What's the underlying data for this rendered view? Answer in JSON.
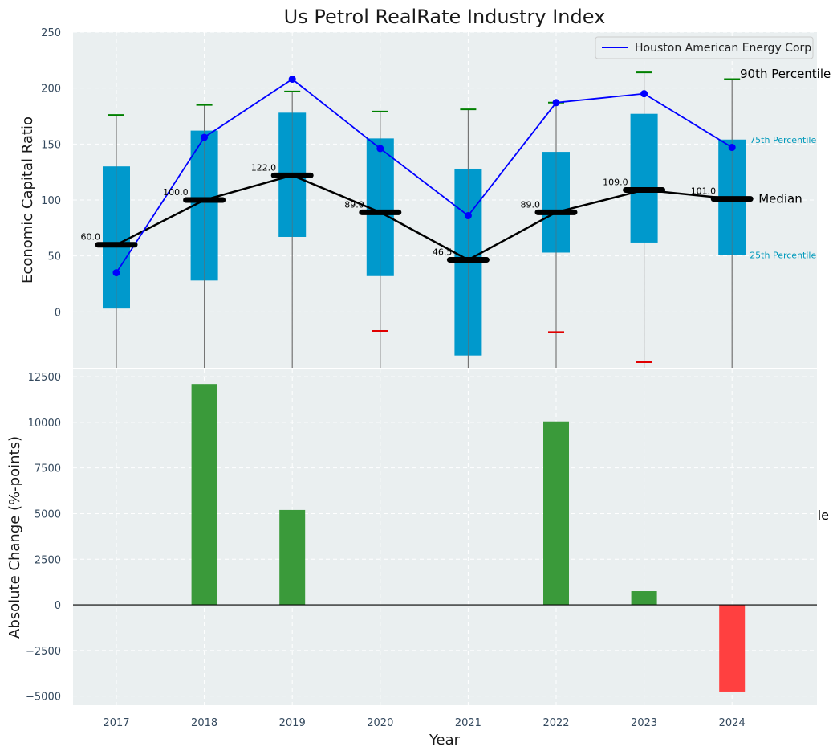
{
  "title": "Us Petrol RealRate Industry Index",
  "colors": {
    "panel_bg": "#eaeff0",
    "grid": "#ffffff",
    "box": "#0099cc",
    "median": "#000000",
    "company": "#0000ff",
    "whisker_top": "#008000",
    "whisker_bottom": "#e00000",
    "bar_pos": "#3a9a3a",
    "bar_neg": "#ff4040",
    "tick_text": "#34495e",
    "pct_label": "#0099bb"
  },
  "chart_data": [
    {
      "type": "box",
      "title": "Us Petrol RealRate Industry Index",
      "ylabel": "Economic Capital Ratio",
      "xlabel": "",
      "ylim": [
        -50,
        250
      ],
      "yticks": [
        0,
        50,
        100,
        150,
        200,
        250
      ],
      "categories": [
        "2017",
        "2018",
        "2019",
        "2020",
        "2021",
        "2022",
        "2023",
        "2024"
      ],
      "p25": [
        3,
        28,
        67,
        32,
        -39,
        53,
        62,
        51
      ],
      "p75": [
        130,
        162,
        178,
        155,
        128,
        143,
        177,
        154
      ],
      "median": [
        60.0,
        100.0,
        122.0,
        89.0,
        46.5,
        89.0,
        109.0,
        101.0
      ],
      "median_labels": [
        "60.0",
        "100.0",
        "122.0",
        "89.0",
        "46.5",
        "89.0",
        "109.0",
        "101.0"
      ],
      "p90": [
        176,
        185,
        197,
        179,
        181,
        187,
        214,
        208
      ],
      "p10": [
        null,
        null,
        null,
        -17,
        null,
        -18,
        -45,
        null
      ],
      "series": [
        {
          "name": "Houston American Energy Corp",
          "values": [
            35,
            156,
            208,
            146,
            86,
            187,
            195,
            147
          ]
        }
      ],
      "legend": "top-right",
      "annotations": {
        "p90": "90th Percentile",
        "p75": "75th Percentile",
        "median": "Median",
        "p25": "25th Percentile"
      },
      "grid": true
    },
    {
      "type": "bar",
      "ylabel": "Absolute Change (%-points)",
      "xlabel": "Year",
      "categories": [
        "2017",
        "2018",
        "2019",
        "2020",
        "2021",
        "2022",
        "2023",
        "2024"
      ],
      "values": [
        0,
        12100,
        5200,
        0,
        0,
        10050,
        750,
        -4750
      ],
      "ylim": [
        -5500,
        12900
      ],
      "yticks": [
        -5000,
        -2500,
        0,
        2500,
        5000,
        7500,
        10000,
        12500
      ],
      "ytick_labels": [
        "−5000",
        "−2500",
        "0",
        "2500",
        "5000",
        "7500",
        "10000",
        "12500"
      ],
      "stray_text": "le",
      "grid": true
    }
  ]
}
